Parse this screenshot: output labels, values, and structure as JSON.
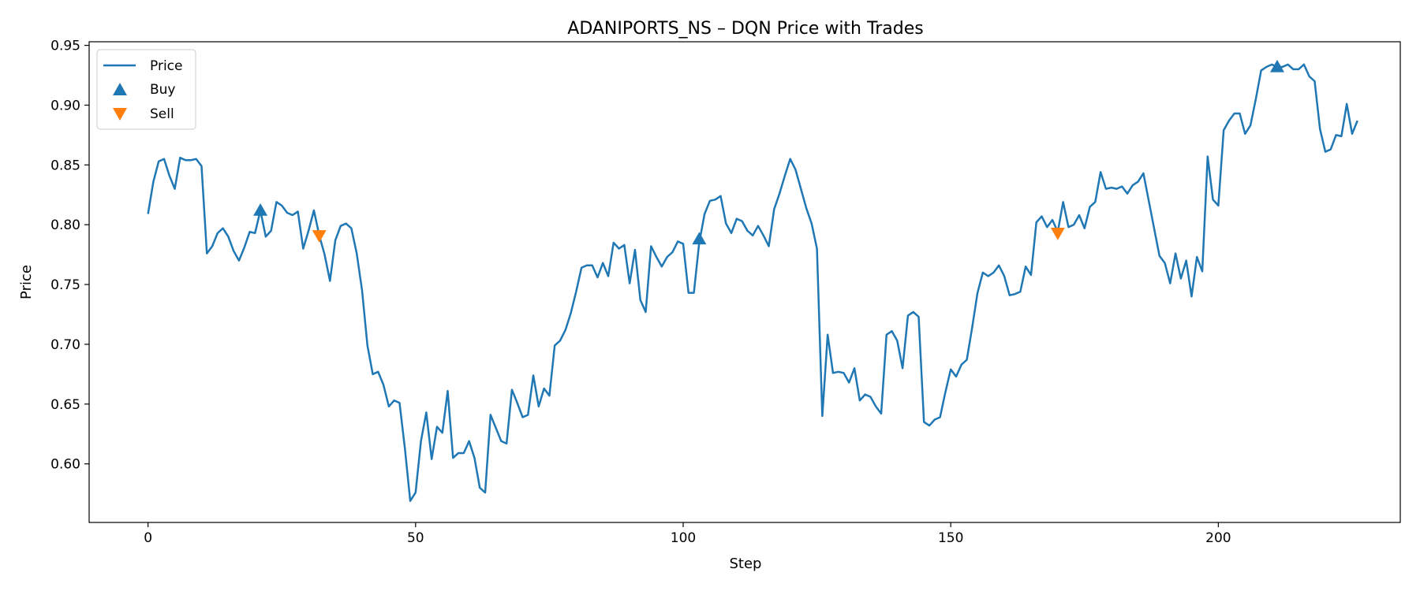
{
  "chart_data": {
    "type": "line",
    "title": "ADANIPORTS_NS – DQN Price with Trades",
    "xlabel": "Step",
    "ylabel": "Price",
    "xlim": [
      -11,
      234
    ],
    "ylim": [
      0.551,
      0.953
    ],
    "xticks": [
      0,
      50,
      100,
      150,
      200
    ],
    "yticks": [
      0.6,
      0.65,
      0.7,
      0.75,
      0.8,
      0.85,
      0.9,
      0.95
    ],
    "grid": false,
    "legend_position": "upper-left",
    "colors": {
      "price": "#1f77b4",
      "buy": "#1f77b4",
      "sell": "#ff7f0e"
    },
    "legend": [
      "Price",
      "Buy",
      "Sell"
    ],
    "series": [
      {
        "name": "Price",
        "values": [
          0.809,
          0.836,
          0.853,
          0.855,
          0.841,
          0.83,
          0.856,
          0.854,
          0.854,
          0.855,
          0.849,
          0.776,
          0.782,
          0.793,
          0.797,
          0.79,
          0.778,
          0.77,
          0.781,
          0.794,
          0.793,
          0.812,
          0.79,
          0.795,
          0.819,
          0.816,
          0.81,
          0.808,
          0.811,
          0.78,
          0.795,
          0.812,
          0.791,
          0.775,
          0.753,
          0.787,
          0.799,
          0.801,
          0.797,
          0.776,
          0.745,
          0.699,
          0.675,
          0.677,
          0.666,
          0.648,
          0.653,
          0.651,
          0.613,
          0.569,
          0.576,
          0.619,
          0.643,
          0.604,
          0.631,
          0.626,
          0.661,
          0.605,
          0.609,
          0.609,
          0.619,
          0.605,
          0.58,
          0.576,
          0.641,
          0.63,
          0.619,
          0.617,
          0.662,
          0.651,
          0.639,
          0.641,
          0.674,
          0.648,
          0.663,
          0.657,
          0.699,
          0.703,
          0.712,
          0.726,
          0.744,
          0.764,
          0.766,
          0.766,
          0.756,
          0.768,
          0.757,
          0.785,
          0.78,
          0.783,
          0.751,
          0.779,
          0.737,
          0.727,
          0.782,
          0.773,
          0.765,
          0.773,
          0.777,
          0.786,
          0.784,
          0.743,
          0.743,
          0.785,
          0.809,
          0.82,
          0.821,
          0.824,
          0.801,
          0.793,
          0.805,
          0.803,
          0.795,
          0.791,
          0.799,
          0.791,
          0.782,
          0.813,
          0.826,
          0.841,
          0.855,
          0.846,
          0.83,
          0.814,
          0.801,
          0.78,
          0.64,
          0.708,
          0.676,
          0.677,
          0.676,
          0.668,
          0.68,
          0.653,
          0.658,
          0.656,
          0.648,
          0.642,
          0.708,
          0.711,
          0.703,
          0.68,
          0.724,
          0.727,
          0.723,
          0.635,
          0.632,
          0.637,
          0.639,
          0.66,
          0.679,
          0.673,
          0.683,
          0.687,
          0.714,
          0.743,
          0.76,
          0.757,
          0.76,
          0.766,
          0.757,
          0.741,
          0.742,
          0.744,
          0.765,
          0.758,
          0.802,
          0.807,
          0.798,
          0.804,
          0.794,
          0.819,
          0.798,
          0.8,
          0.808,
          0.797,
          0.815,
          0.819,
          0.844,
          0.83,
          0.831,
          0.83,
          0.832,
          0.826,
          0.833,
          0.836,
          0.843,
          0.82,
          0.797,
          0.774,
          0.768,
          0.751,
          0.776,
          0.755,
          0.77,
          0.74,
          0.773,
          0.761,
          0.857,
          0.821,
          0.816,
          0.879,
          0.887,
          0.893,
          0.893,
          0.876,
          0.883,
          0.905,
          0.929,
          0.932,
          0.934,
          0.932,
          0.932,
          0.934,
          0.93,
          0.93,
          0.934,
          0.924,
          0.92,
          0.88,
          0.861,
          0.863,
          0.875,
          0.874,
          0.901,
          0.876,
          0.887
        ]
      },
      {
        "name": "Buy",
        "marker": "triangle-up",
        "x": [
          21,
          103,
          211
        ],
        "y": [
          0.812,
          0.788,
          0.932
        ]
      },
      {
        "name": "Sell",
        "marker": "triangle-down",
        "x": [
          32,
          170
        ],
        "y": [
          0.791,
          0.793
        ]
      }
    ]
  }
}
